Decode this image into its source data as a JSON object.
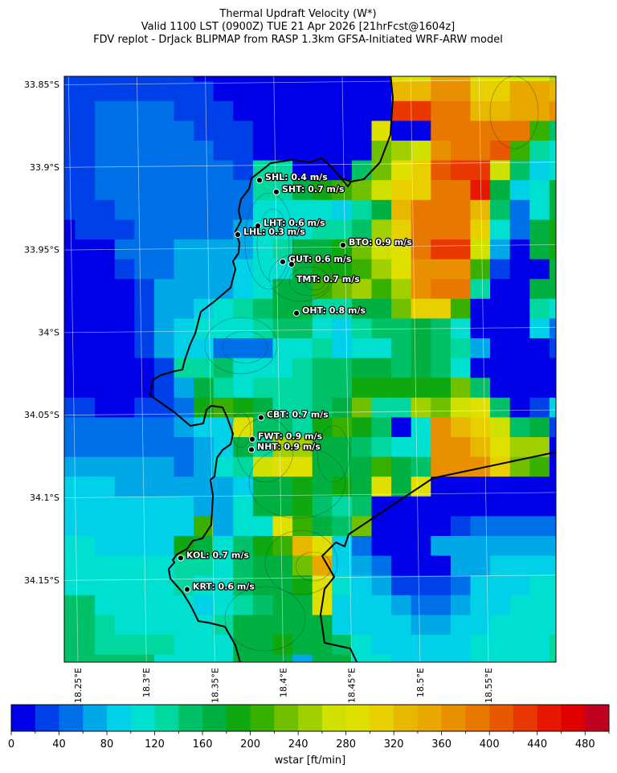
{
  "title": {
    "line1": "Thermal Updraft Velocity (W*)",
    "line2": "Valid 1100 LST (0900Z) TUE 21 Apr 2026 [21hrFcst@1604z]",
    "line3": "FDV replot - DrJack BLIPMAP from RASP 1.3km GFSA-Initiated WRF-ARW model"
  },
  "chart_data": {
    "type": "heatmap",
    "variable": "wstar",
    "units": "ft/min",
    "lat_range": [
      -34.2,
      -33.84
    ],
    "lon_range": [
      18.24,
      18.6
    ],
    "lat_ticks": [
      {
        "value": -33.85,
        "label": "33.85°S"
      },
      {
        "value": -33.9,
        "label": "33.9°S"
      },
      {
        "value": -33.95,
        "label": "33.95°S"
      },
      {
        "value": -34.0,
        "label": "34°S"
      },
      {
        "value": -34.05,
        "label": "34.05°S"
      },
      {
        "value": -34.1,
        "label": "34.1°S"
      },
      {
        "value": -34.15,
        "label": "34.15°S"
      }
    ],
    "lon_ticks": [
      {
        "value": 18.25,
        "label": "18.25°E"
      },
      {
        "value": 18.3,
        "label": "18.3°E"
      },
      {
        "value": 18.35,
        "label": "18.35°E"
      },
      {
        "value": 18.4,
        "label": "18.4°E"
      },
      {
        "value": 18.45,
        "label": "18.45°E"
      },
      {
        "value": 18.5,
        "label": "18.5°E"
      },
      {
        "value": 18.55,
        "label": "18.55°E"
      }
    ],
    "colorbar": {
      "label": "wstar [ft/min]",
      "min": 0,
      "max": 500,
      "bin_width": 20,
      "tick_values": [
        0,
        40,
        80,
        120,
        160,
        200,
        240,
        280,
        320,
        360,
        400,
        440,
        480
      ],
      "tick_labels": [
        "0",
        "40",
        "80",
        "120",
        "160",
        "200",
        "240",
        "280",
        "320",
        "360",
        "400",
        "440",
        "480"
      ],
      "colors": [
        "#0000e8",
        "#0040e8",
        "#0070e8",
        "#00a8e8",
        "#00d0e8",
        "#00e0d0",
        "#00d8a0",
        "#00c068",
        "#00b040",
        "#10a810",
        "#38b000",
        "#70c000",
        "#a0d000",
        "#d0e000",
        "#e0e000",
        "#e8d000",
        "#e8b800",
        "#e8a800",
        "#e89000",
        "#e87800",
        "#e85800",
        "#e83800",
        "#e81800",
        "#e00000",
        "#c00020"
      ]
    },
    "grid_encoding": "each char = 20 ft/min bin index in base-25 (0-9,a-o); rows north to south, columns west to east",
    "grid_rows": [
      "11111110000000000eehheeddc",
      "11111111000000000ggiiffhhg",
      "11222211100000000lljjgghhi",
      "1122222111000000e00jjjjja7",
      "1122222211000000bcdijjka65",
      "1122222221660007befklld745",
      "11222222226689abdffjjm8458",
      "11122222225555468gjjjg7258",
      "0111222223555667cfjjjf5289",
      "000222333356889bdejlld3089",
      "000122333455899aceiiia1008",
      "0000133334588abcacijj60088",
      "00001334567886688bffa00065",
      "00001345556775467787500042",
      "00001344222556455787630001",
      "00000166755567788787500000",
      "00000138656667799999b70000",
      "11001129a986678b66cbde7014",
      "222222344e7769a9705igfd781",
      "22222223486cc887655iigecc0",
      "3333332356dee888a87iiifba0",
      "4443333334889898e8e0000000",
      "44444443358897670000000000",
      "4444444a355ea87b0000122222",
      "55444498579age420003333333",
      "555555665788bh432000334444",
      "5555556557889e543111244455",
      "7755555456788e444322344555",
      "77655555688888444433445555",
      "77666655588988754444455556",
      "77777555588838855444455556"
    ],
    "stations": [
      {
        "id": "SHL",
        "label": "SHL: 0.4 m/s",
        "wstar_ms": 0.4,
        "lat": -33.908,
        "lon": 18.3827
      },
      {
        "id": "SHT",
        "label": "SHT: 0.7 m/s",
        "wstar_ms": 0.7,
        "lat": -33.9151,
        "lon": 18.395
      },
      {
        "id": "LHT",
        "label": "LHT: 0.6 m/s",
        "wstar_ms": 0.6,
        "lat": -33.9356,
        "lon": 18.3815
      },
      {
        "id": "LHL",
        "label": "LHL: 0.3 m/s",
        "wstar_ms": 0.3,
        "lat": -33.9409,
        "lon": 18.3668
      },
      {
        "id": "BTO",
        "label": "BTO: 0.9 m/s",
        "wstar_ms": 0.9,
        "lat": -33.9473,
        "lon": 18.4437
      },
      {
        "id": "GUT",
        "label": "GUT: 0.6 m/s",
        "wstar_ms": 0.6,
        "lat": -33.9574,
        "lon": 18.3997
      },
      {
        "id": "TMT",
        "label": "TMT: 0.7 m/s",
        "wstar_ms": 0.7,
        "lat": -33.9589,
        "lon": 18.4061
      },
      {
        "id": "OHT",
        "label": "OHT: 0.8 m/s",
        "wstar_ms": 0.8,
        "lat": -33.9885,
        "lon": 18.4097
      },
      {
        "id": "CBT",
        "label": "CBT: 0.7 m/s",
        "wstar_ms": 0.7,
        "lat": -34.0517,
        "lon": 18.3838
      },
      {
        "id": "FWT",
        "label": "FWT: 0.9 m/s",
        "wstar_ms": 0.9,
        "lat": -34.0648,
        "lon": 18.3774
      },
      {
        "id": "NHT",
        "label": "NHT: 0.9 m/s",
        "wstar_ms": 0.9,
        "lat": -34.0711,
        "lon": 18.3768
      },
      {
        "id": "KOL",
        "label": "KOL: 0.7 m/s",
        "wstar_ms": 0.7,
        "lat": -34.1367,
        "lon": 18.3251
      },
      {
        "id": "KRT",
        "label": "KRT: 0.6 m/s",
        "wstar_ms": 0.6,
        "lat": -34.1557,
        "lon": 18.3298
      }
    ]
  }
}
